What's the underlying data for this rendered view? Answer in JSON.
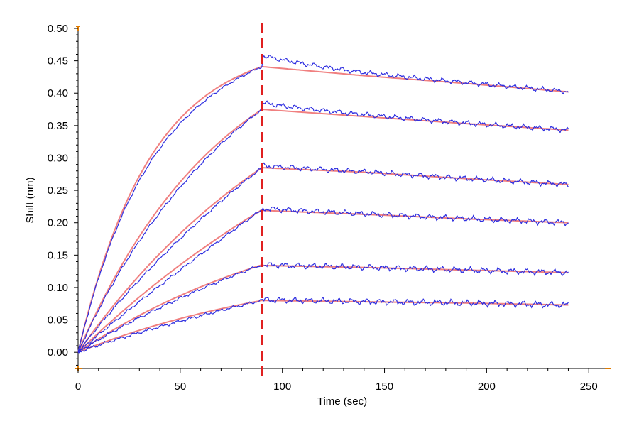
{
  "chart_data": {
    "type": "line",
    "title": "",
    "xlabel": "Time (sec)",
    "ylabel": "Shift (nm)",
    "xlim": [
      0,
      260
    ],
    "ylim": [
      -0.025,
      0.5
    ],
    "x_ticks": [
      0,
      50,
      100,
      150,
      200,
      250
    ],
    "x_tick_labels": [
      "0",
      "50",
      "100",
      "150",
      "200",
      "250"
    ],
    "y_ticks": [
      0.0,
      0.05,
      0.1,
      0.15,
      0.2,
      0.25,
      0.3,
      0.35,
      0.4,
      0.45,
      0.5
    ],
    "y_tick_labels": [
      "0.00",
      "0.05",
      "0.10",
      "0.15",
      "0.20",
      "0.25",
      "0.30",
      "0.35",
      "0.40",
      "0.45",
      "0.50"
    ],
    "grid": false,
    "legend": "none",
    "association_end_x": 90,
    "x_end": 240,
    "colors": {
      "raw": "#2e2ee0",
      "fit": "#f08080",
      "marker_line": "#e02020",
      "axis_end_marker": "#e07b00"
    },
    "series": [
      {
        "assoc_points_x": [
          0,
          30,
          60,
          90
        ],
        "assoc_points_y": [
          0.0,
          0.275,
          0.39,
          0.441
        ],
        "dissoc_points_x": [
          90,
          140,
          190,
          240
        ],
        "dissoc_points_y": [
          0.441,
          0.427,
          0.415,
          0.402
        ]
      },
      {
        "assoc_points_x": [
          0,
          30,
          60,
          90
        ],
        "assoc_points_y": [
          0.0,
          0.18,
          0.297,
          0.375
        ],
        "dissoc_points_x": [
          90,
          140,
          190,
          240
        ],
        "dissoc_points_y": [
          0.375,
          0.364,
          0.353,
          0.343
        ]
      },
      {
        "assoc_points_x": [
          0,
          30,
          60,
          90
        ],
        "assoc_points_y": [
          0.0,
          0.118,
          0.212,
          0.285
        ],
        "dissoc_points_x": [
          90,
          140,
          190,
          240
        ],
        "dissoc_points_y": [
          0.285,
          0.278,
          0.268,
          0.259
        ]
      },
      {
        "assoc_points_x": [
          0,
          30,
          60,
          90
        ],
        "assoc_points_y": [
          0.0,
          0.085,
          0.158,
          0.22
        ],
        "dissoc_points_x": [
          90,
          140,
          190,
          240
        ],
        "dissoc_points_y": [
          0.219,
          0.213,
          0.206,
          0.2
        ]
      },
      {
        "assoc_points_x": [
          0,
          30,
          60,
          90
        ],
        "assoc_points_y": [
          0.0,
          0.058,
          0.101,
          0.135
        ],
        "dissoc_points_x": [
          90,
          140,
          190,
          240
        ],
        "dissoc_points_y": [
          0.134,
          0.131,
          0.127,
          0.123
        ]
      },
      {
        "assoc_points_x": [
          0,
          30,
          60,
          90
        ],
        "assoc_points_y": [
          0.0,
          0.033,
          0.06,
          0.08
        ],
        "dissoc_points_x": [
          90,
          140,
          190,
          240
        ],
        "dissoc_points_y": [
          0.08,
          0.078,
          0.076,
          0.073
        ]
      }
    ]
  }
}
